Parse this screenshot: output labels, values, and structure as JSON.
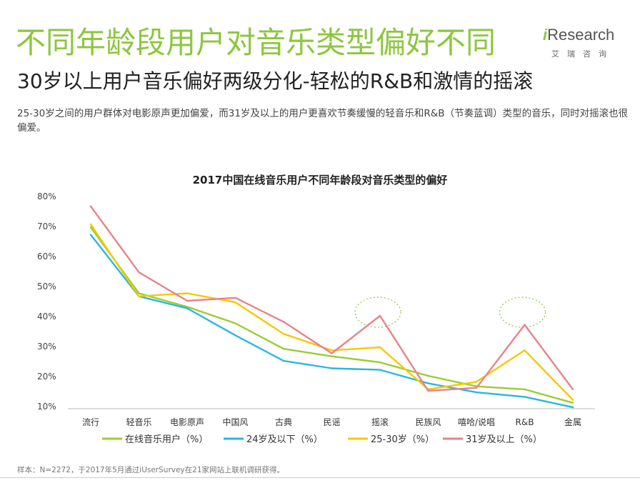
{
  "header": {
    "title": "不同年龄段用户对音乐类型偏好不同",
    "subtitle": "30岁以上用户音乐偏好两级分化-轻松的R&B和激情的摇滚",
    "description": "25-30岁之间的用户群体对电影原声更加偏爱，而31岁及以上的用户更喜欢节奏缓慢的轻音乐和R&B（节奏蓝调）类型的音乐，同时对摇滚也很偏爱。"
  },
  "logo": {
    "i": "i",
    "rest": "Research",
    "sub": "艾瑞咨询"
  },
  "footer": {
    "source": "样本：N=2272，于2017年5月通过iUserSurvey在21家网站上联机调研获得。"
  },
  "chart_data": {
    "type": "line",
    "title": "2017中国在线音乐用户不同年龄段对音乐类型的偏好",
    "categories": [
      "流行",
      "轻音乐",
      "电影原声",
      "中国风",
      "古典",
      "民谣",
      "摇滚",
      "民族风",
      "嘻哈/说唱",
      "R&B",
      "金属"
    ],
    "y_ticks": [
      "80%",
      "70%",
      "60%",
      "50%",
      "40%",
      "30%",
      "20%",
      "10%"
    ],
    "ylim": [
      10,
      80
    ],
    "legend_position": "bottom",
    "highlight_categories": [
      "摇滚",
      "R&B"
    ],
    "series": [
      {
        "name": "在线音乐用户（%）",
        "color": "#9acd32",
        "values": [
          69.5,
          47.5,
          43,
          37.5,
          29,
          26.5,
          24.5,
          20,
          16.5,
          15.5,
          11
        ]
      },
      {
        "name": "24岁及以下（%）",
        "color": "#29b6e6",
        "values": [
          67,
          46.5,
          42.5,
          33.5,
          25,
          22.5,
          22,
          17.5,
          14.5,
          13,
          9.5
        ]
      },
      {
        "name": "25-30岁（%）",
        "color": "#f5c800",
        "values": [
          70.5,
          46.5,
          47.5,
          44.5,
          34,
          28.5,
          29.5,
          15.5,
          18,
          28.5,
          12
        ]
      },
      {
        "name": "31岁及以上（%）",
        "color": "#e8828c",
        "values": [
          76.5,
          54.5,
          45,
          46,
          38,
          27.5,
          40,
          15,
          16,
          37,
          15.5
        ]
      }
    ]
  }
}
